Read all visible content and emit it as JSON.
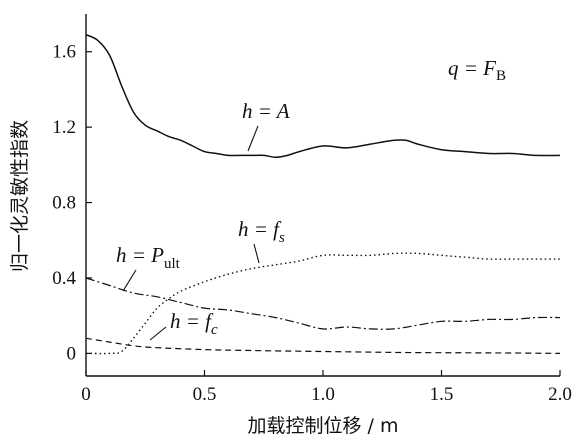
{
  "chart_data": {
    "type": "line",
    "xlabel": "加载控制位移 / m",
    "ylabel": "归一化灵敏性指数",
    "xlim": [
      0,
      2.0
    ],
    "ylim": [
      -0.12,
      1.8
    ],
    "xticks": [
      "0",
      "0.5",
      "1.0",
      "1.5",
      "2.0"
    ],
    "yticks": [
      "0",
      "0.4",
      "0.8",
      "1.2",
      "1.6"
    ],
    "grid": false,
    "legend": "none",
    "annotations": {
      "q": "q = F",
      "q_sub": "B",
      "A": "h = A",
      "P": "h = P",
      "P_sub": "ult",
      "fs": "h = f",
      "fs_sub": "s",
      "fc": "h = f",
      "fc_sub": "c"
    },
    "series": [
      {
        "style": "solid",
        "x": [
          0,
          0.05,
          0.1,
          0.15,
          0.2,
          0.25,
          0.3,
          0.35,
          0.4,
          0.45,
          0.5,
          0.55,
          0.6,
          0.65,
          0.7,
          0.75,
          0.8,
          0.85,
          0.9,
          1.0,
          1.1,
          1.2,
          1.3,
          1.35,
          1.4,
          1.5,
          1.6,
          1.7,
          1.8,
          1.9,
          2.0
        ],
        "y": [
          1.69,
          1.66,
          1.58,
          1.42,
          1.28,
          1.21,
          1.18,
          1.15,
          1.13,
          1.1,
          1.07,
          1.06,
          1.05,
          1.05,
          1.05,
          1.05,
          1.04,
          1.05,
          1.07,
          1.1,
          1.09,
          1.11,
          1.13,
          1.13,
          1.11,
          1.08,
          1.07,
          1.06,
          1.06,
          1.05,
          1.05
        ]
      },
      {
        "style": "dashdot",
        "x": [
          0,
          0.1,
          0.2,
          0.3,
          0.4,
          0.5,
          0.6,
          0.7,
          0.8,
          0.9,
          1.0,
          1.1,
          1.2,
          1.3,
          1.4,
          1.5,
          1.6,
          1.7,
          1.8,
          1.9,
          2.0
        ],
        "y": [
          0.4,
          0.36,
          0.32,
          0.3,
          0.27,
          0.24,
          0.23,
          0.21,
          0.19,
          0.16,
          0.13,
          0.14,
          0.13,
          0.13,
          0.15,
          0.17,
          0.17,
          0.18,
          0.18,
          0.19,
          0.19
        ]
      },
      {
        "style": "dotted",
        "x": [
          0,
          0.1,
          0.15,
          0.2,
          0.25,
          0.3,
          0.35,
          0.4,
          0.5,
          0.6,
          0.7,
          0.8,
          0.9,
          1.0,
          1.1,
          1.2,
          1.3,
          1.4,
          1.5,
          1.6,
          1.7,
          1.8,
          1.9,
          2.0
        ],
        "y": [
          0.0,
          0.0,
          0.01,
          0.08,
          0.16,
          0.24,
          0.29,
          0.33,
          0.38,
          0.42,
          0.45,
          0.47,
          0.49,
          0.52,
          0.52,
          0.52,
          0.53,
          0.53,
          0.52,
          0.51,
          0.5,
          0.5,
          0.5,
          0.5
        ]
      },
      {
        "style": "dashed",
        "x": [
          0,
          0.1,
          0.2,
          0.3,
          0.5,
          0.7,
          1.0,
          1.3,
          1.6,
          1.8,
          2.0
        ],
        "y": [
          0.08,
          0.06,
          0.04,
          0.03,
          0.02,
          0.015,
          0.01,
          0.005,
          0.003,
          0.002,
          0.0
        ]
      }
    ]
  }
}
